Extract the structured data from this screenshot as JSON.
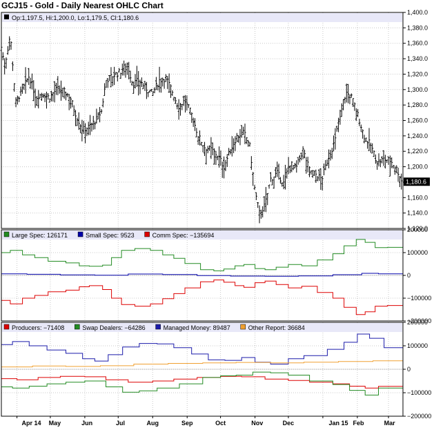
{
  "title": "GCJ15 - Gold - Daily Nearest OHLC Chart",
  "colors": {
    "frame": "#000000",
    "grid": "#c8c8c8",
    "legend_band": "#e8e8f8",
    "large_spec": "#228b22",
    "small_spec": "#0000aa",
    "comm_spec": "#dd0000",
    "producers": "#dd0000",
    "swap_dealers": "#228b22",
    "managed_money": "#1a1aaa",
    "other_report": "#f0a030"
  },
  "chart_data": [
    {
      "type": "ohlc",
      "title": "GCJ15 - Gold - Daily Nearest OHLC Chart",
      "legend": "Op:1,197.5, Hi:1,200.0, Lo:1,179.5, Cl:1,180.6",
      "last_value_label": "1,180.6",
      "last_close": 1180.6,
      "ylim": [
        1120,
        1400
      ],
      "yticks": [
        1120,
        1140,
        1160,
        1180,
        1200,
        1220,
        1240,
        1260,
        1280,
        1300,
        1320,
        1340,
        1360,
        1380,
        1400
      ],
      "ytick_labels": [
        "1,120.0",
        "1,140.0",
        "1,160.0",
        "1,180.0",
        "1,200.0",
        "1,220.0",
        "1,240.0",
        "1,260.0",
        "1,280.0",
        "1,300.0",
        "1,320.0",
        "1,340.0",
        "1,360.0",
        "1,380.0",
        "1,400.0"
      ],
      "x_range": [
        "2014-03-18",
        "2015-03-14"
      ],
      "close_path": [
        [
          "2014-03-18",
          1355
        ],
        [
          "2014-03-21",
          1330
        ],
        [
          "2014-03-26",
          1372
        ],
        [
          "2014-03-31",
          1284
        ],
        [
          "2014-04-06",
          1300
        ],
        [
          "2014-04-12",
          1318
        ],
        [
          "2014-04-18",
          1290
        ],
        [
          "2014-04-24",
          1295
        ],
        [
          "2014-04-30",
          1290
        ],
        [
          "2014-05-07",
          1301
        ],
        [
          "2014-05-13",
          1298
        ],
        [
          "2014-05-19",
          1290
        ],
        [
          "2014-05-24",
          1268
        ],
        [
          "2014-05-30",
          1248
        ],
        [
          "2014-06-05",
          1252
        ],
        [
          "2014-06-11",
          1260
        ],
        [
          "2014-06-16",
          1272
        ],
        [
          "2014-06-20",
          1312
        ],
        [
          "2014-06-26",
          1318
        ],
        [
          "2014-07-03",
          1323
        ],
        [
          "2014-07-09",
          1334
        ],
        [
          "2014-07-14",
          1308
        ],
        [
          "2014-07-20",
          1312
        ],
        [
          "2014-07-26",
          1302
        ],
        [
          "2014-08-01",
          1295
        ],
        [
          "2014-08-07",
          1312
        ],
        [
          "2014-08-13",
          1315
        ],
        [
          "2014-08-18",
          1300
        ],
        [
          "2014-08-24",
          1278
        ],
        [
          "2014-08-30",
          1286
        ],
        [
          "2014-09-05",
          1268
        ],
        [
          "2014-09-11",
          1240
        ],
        [
          "2014-09-17",
          1225
        ],
        [
          "2014-09-23",
          1222
        ],
        [
          "2014-09-29",
          1214
        ],
        [
          "2014-10-04",
          1200
        ],
        [
          "2014-10-10",
          1222
        ],
        [
          "2014-10-16",
          1240
        ],
        [
          "2014-10-22",
          1244
        ],
        [
          "2014-10-27",
          1230
        ],
        [
          "2014-11-01",
          1168
        ],
        [
          "2014-11-05",
          1140
        ],
        [
          "2014-11-10",
          1150
        ],
        [
          "2014-11-15",
          1184
        ],
        [
          "2014-11-21",
          1192
        ],
        [
          "2014-11-27",
          1178
        ],
        [
          "2014-12-02",
          1205
        ],
        [
          "2014-12-08",
          1198
        ],
        [
          "2014-12-14",
          1222
        ],
        [
          "2014-12-20",
          1196
        ],
        [
          "2014-12-26",
          1190
        ],
        [
          "2014-12-31",
          1184
        ],
        [
          "2015-01-06",
          1212
        ],
        [
          "2015-01-12",
          1234
        ],
        [
          "2015-01-17",
          1274
        ],
        [
          "2015-01-22",
          1296
        ],
        [
          "2015-01-27",
          1290
        ],
        [
          "2015-02-02",
          1265
        ],
        [
          "2015-02-07",
          1240
        ],
        [
          "2015-02-13",
          1228
        ],
        [
          "2015-02-19",
          1206
        ],
        [
          "2015-02-25",
          1210
        ],
        [
          "2015-03-03",
          1208
        ],
        [
          "2015-03-09",
          1196
        ],
        [
          "2015-03-13",
          1180.6
        ]
      ],
      "x_tick_labels": [
        "Apr 14",
        "May",
        "Jun",
        "Jul",
        "Aug",
        "Sep",
        "Oct",
        "Nov",
        "Dec",
        "Jan 15",
        "Feb",
        "Mar"
      ]
    },
    {
      "type": "line",
      "ylim": [
        -200000,
        200000
      ],
      "yticks": [
        -200000,
        -100000,
        0,
        100000,
        200000
      ],
      "ytick_labels": [
        "−200000",
        "−100000",
        "0",
        "100000",
        "200000"
      ],
      "step": true,
      "series": [
        {
          "name": "Large Spec: 126171",
          "color": "#228b22",
          "points": [
            [
              "2014-03-18",
              100000
            ],
            [
              "2014-03-26",
              110000
            ],
            [
              "2014-04-06",
              90000
            ],
            [
              "2014-04-17",
              78000
            ],
            [
              "2014-04-29",
              62000
            ],
            [
              "2014-05-15",
              55000
            ],
            [
              "2014-05-27",
              42000
            ],
            [
              "2014-06-05",
              40000
            ],
            [
              "2014-06-17",
              45000
            ],
            [
              "2014-06-25",
              78000
            ],
            [
              "2014-07-04",
              110000
            ],
            [
              "2014-07-16",
              118000
            ],
            [
              "2014-07-30",
              110000
            ],
            [
              "2014-08-10",
              90000
            ],
            [
              "2014-08-20",
              75000
            ],
            [
              "2014-08-30",
              52000
            ],
            [
              "2014-09-13",
              25000
            ],
            [
              "2014-09-25",
              20000
            ],
            [
              "2014-10-04",
              28000
            ],
            [
              "2014-10-14",
              42000
            ],
            [
              "2014-10-22",
              48000
            ],
            [
              "2014-11-01",
              30000
            ],
            [
              "2014-11-10",
              25000
            ],
            [
              "2014-11-20",
              36000
            ],
            [
              "2014-12-01",
              48000
            ],
            [
              "2014-12-13",
              42000
            ],
            [
              "2014-12-27",
              68000
            ],
            [
              "2015-01-10",
              95000
            ],
            [
              "2015-01-20",
              130000
            ],
            [
              "2015-01-31",
              158000
            ],
            [
              "2015-02-08",
              145000
            ],
            [
              "2015-02-17",
              122000
            ],
            [
              "2015-02-28",
              123000
            ],
            [
              "2015-03-14",
              126171
            ]
          ]
        },
        {
          "name": "Small Spec: 9523",
          "color": "#0000aa",
          "points": [
            [
              "2014-03-18",
              7000
            ],
            [
              "2014-04-10",
              5000
            ],
            [
              "2014-05-10",
              2000
            ],
            [
              "2014-06-10",
              1000
            ],
            [
              "2014-07-10",
              6000
            ],
            [
              "2014-08-10",
              4000
            ],
            [
              "2014-09-10",
              -1000
            ],
            [
              "2014-10-10",
              -3000
            ],
            [
              "2014-11-10",
              -4000
            ],
            [
              "2014-12-10",
              -2000
            ],
            [
              "2015-01-10",
              3000
            ],
            [
              "2015-02-05",
              9000
            ],
            [
              "2015-02-20",
              7000
            ],
            [
              "2015-03-14",
              9523
            ]
          ]
        },
        {
          "name": "Comm Spec: −135694",
          "color": "#dd0000",
          "points": [
            [
              "2014-03-18",
              -110000
            ],
            [
              "2014-03-26",
              -125000
            ],
            [
              "2014-04-06",
              -100000
            ],
            [
              "2014-04-17",
              -88000
            ],
            [
              "2014-04-29",
              -72000
            ],
            [
              "2014-05-15",
              -65000
            ],
            [
              "2014-05-27",
              -50000
            ],
            [
              "2014-06-05",
              -45000
            ],
            [
              "2014-06-17",
              -62000
            ],
            [
              "2014-06-25",
              -100000
            ],
            [
              "2014-07-04",
              -128000
            ],
            [
              "2014-07-16",
              -135000
            ],
            [
              "2014-07-30",
              -125000
            ],
            [
              "2014-08-10",
              -102000
            ],
            [
              "2014-08-20",
              -80000
            ],
            [
              "2014-08-30",
              -55000
            ],
            [
              "2014-09-13",
              -28000
            ],
            [
              "2014-09-25",
              -20000
            ],
            [
              "2014-10-04",
              -30000
            ],
            [
              "2014-10-14",
              -45000
            ],
            [
              "2014-10-22",
              -52000
            ],
            [
              "2014-11-01",
              -32000
            ],
            [
              "2014-11-10",
              -25000
            ],
            [
              "2014-11-20",
              -40000
            ],
            [
              "2014-12-01",
              -55000
            ],
            [
              "2014-12-13",
              -48000
            ],
            [
              "2014-12-27",
              -75000
            ],
            [
              "2015-01-10",
              -100000
            ],
            [
              "2015-01-20",
              -140000
            ],
            [
              "2015-01-31",
              -172000
            ],
            [
              "2015-02-08",
              -160000
            ],
            [
              "2015-02-17",
              -135000
            ],
            [
              "2015-02-28",
              -132000
            ],
            [
              "2015-03-14",
              -135694
            ]
          ]
        }
      ]
    },
    {
      "type": "line",
      "ylim": [
        -200000,
        200000
      ],
      "yticks": [
        -200000,
        -100000,
        0,
        100000,
        200000
      ],
      "ytick_labels": [
        "−200000",
        "−100000",
        "0",
        "100000",
        "200000"
      ],
      "step": true,
      "series": [
        {
          "name": "Producers: −71408",
          "color": "#dd0000",
          "points": [
            [
              "2014-03-18",
              -40000
            ],
            [
              "2014-04-01",
              -45000
            ],
            [
              "2014-04-20",
              -35000
            ],
            [
              "2014-05-10",
              -30000
            ],
            [
              "2014-06-01",
              -32000
            ],
            [
              "2014-06-20",
              -45000
            ],
            [
              "2014-07-10",
              -55000
            ],
            [
              "2014-08-01",
              -50000
            ],
            [
              "2014-08-20",
              -42000
            ],
            [
              "2014-09-10",
              -35000
            ],
            [
              "2014-10-01",
              -30000
            ],
            [
              "2014-10-20",
              -32000
            ],
            [
              "2014-11-10",
              -42000
            ],
            [
              "2014-12-01",
              -48000
            ],
            [
              "2014-12-20",
              -55000
            ],
            [
              "2015-01-10",
              -62000
            ],
            [
              "2015-01-25",
              -72000
            ],
            [
              "2015-02-08",
              -80000
            ],
            [
              "2015-02-20",
              -73000
            ],
            [
              "2015-03-14",
              -71408
            ]
          ]
        },
        {
          "name": "Swap Dealers: −64286",
          "color": "#228b22",
          "points": [
            [
              "2014-03-18",
              -75000
            ],
            [
              "2014-03-28",
              -80000
            ],
            [
              "2014-04-12",
              -72000
            ],
            [
              "2014-04-28",
              -62000
            ],
            [
              "2014-05-15",
              -55000
            ],
            [
              "2014-06-01",
              -50000
            ],
            [
              "2014-06-20",
              -75000
            ],
            [
              "2014-07-05",
              -98000
            ],
            [
              "2014-07-20",
              -92000
            ],
            [
              "2014-08-05",
              -80000
            ],
            [
              "2014-08-25",
              -62000
            ],
            [
              "2014-09-15",
              -35000
            ],
            [
              "2014-10-01",
              -28000
            ],
            [
              "2014-10-15",
              -25000
            ],
            [
              "2014-10-30",
              -12000
            ],
            [
              "2014-11-15",
              -15000
            ],
            [
              "2014-12-01",
              -25000
            ],
            [
              "2014-12-20",
              -50000
            ],
            [
              "2015-01-10",
              -65000
            ],
            [
              "2015-01-25",
              -90000
            ],
            [
              "2015-02-08",
              -110000
            ],
            [
              "2015-02-20",
              -80000
            ],
            [
              "2015-03-14",
              -64286
            ]
          ]
        },
        {
          "name": "Managed Money: 89487",
          "color": "#1a1aaa",
          "points": [
            [
              "2014-03-18",
              105000
            ],
            [
              "2014-03-28",
              118000
            ],
            [
              "2014-04-12",
              100000
            ],
            [
              "2014-04-28",
              82000
            ],
            [
              "2014-05-15",
              68000
            ],
            [
              "2014-05-30",
              45000
            ],
            [
              "2014-06-10",
              35000
            ],
            [
              "2014-06-22",
              62000
            ],
            [
              "2014-07-05",
              95000
            ],
            [
              "2014-07-20",
              110000
            ],
            [
              "2014-08-05",
              108000
            ],
            [
              "2014-08-20",
              92000
            ],
            [
              "2014-09-05",
              65000
            ],
            [
              "2014-09-20",
              40000
            ],
            [
              "2014-10-05",
              38000
            ],
            [
              "2014-10-20",
              50000
            ],
            [
              "2014-11-01",
              30000
            ],
            [
              "2014-11-15",
              22000
            ],
            [
              "2014-12-01",
              45000
            ],
            [
              "2014-12-15",
              58000
            ],
            [
              "2015-01-05",
              85000
            ],
            [
              "2015-01-20",
              115000
            ],
            [
              "2015-02-01",
              150000
            ],
            [
              "2015-02-12",
              132000
            ],
            [
              "2015-02-25",
              92000
            ],
            [
              "2015-03-14",
              89487
            ]
          ]
        },
        {
          "name": "Other Report: 36684",
          "color": "#f0a030",
          "points": [
            [
              "2014-03-18",
              10000
            ],
            [
              "2014-04-15",
              14000
            ],
            [
              "2014-05-15",
              12000
            ],
            [
              "2014-06-15",
              15000
            ],
            [
              "2014-07-15",
              22000
            ],
            [
              "2014-08-15",
              25000
            ],
            [
              "2014-09-15",
              27000
            ],
            [
              "2014-10-15",
              29000
            ],
            [
              "2014-11-15",
              27000
            ],
            [
              "2014-12-15",
              30000
            ],
            [
              "2015-01-15",
              33000
            ],
            [
              "2015-02-15",
              36000
            ],
            [
              "2015-03-14",
              36684
            ]
          ]
        }
      ]
    }
  ]
}
